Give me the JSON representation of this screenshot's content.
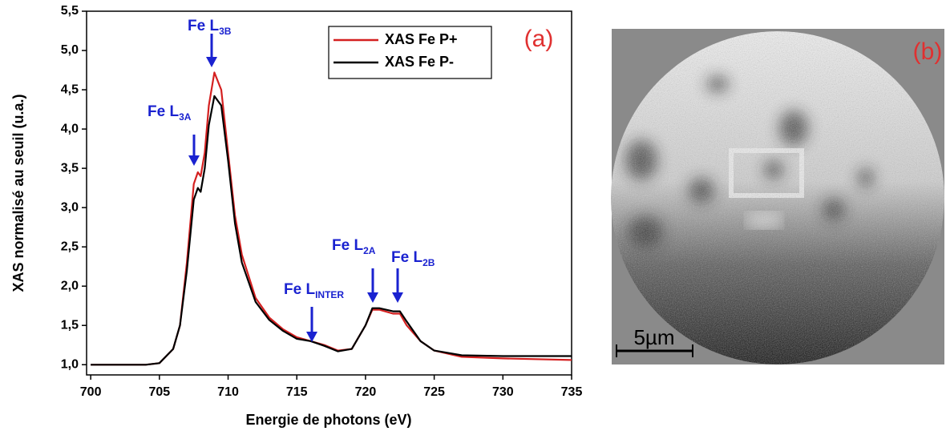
{
  "chart_data": {
    "type": "line",
    "x_label": "Energie de photons (eV)",
    "y_label": "XAS normalisé au seuil (u.a.)",
    "panel_label": "(a)",
    "x": [
      700,
      702,
      704,
      705,
      706,
      706.5,
      707,
      707.5,
      707.8,
      708,
      708.3,
      708.6,
      709,
      709.5,
      710,
      710.5,
      711,
      712,
      713,
      714,
      715,
      716,
      717,
      718,
      719,
      720,
      720.5,
      721,
      722,
      722.5,
      723,
      724,
      725,
      727,
      730,
      735
    ],
    "series": [
      {
        "name": "XAS Fe P+",
        "color": "#d42020",
        "values": [
          1.0,
          1.0,
          1.0,
          1.02,
          1.2,
          1.5,
          2.3,
          3.3,
          3.45,
          3.4,
          3.7,
          4.3,
          4.72,
          4.5,
          3.7,
          2.9,
          2.4,
          1.85,
          1.6,
          1.45,
          1.35,
          1.3,
          1.25,
          1.18,
          1.2,
          1.5,
          1.7,
          1.7,
          1.65,
          1.65,
          1.5,
          1.3,
          1.18,
          1.1,
          1.08,
          1.06
        ]
      },
      {
        "name": "XAS Fe P-",
        "color": "#000000",
        "values": [
          1.0,
          1.0,
          1.0,
          1.02,
          1.2,
          1.5,
          2.2,
          3.1,
          3.25,
          3.2,
          3.5,
          4.05,
          4.42,
          4.3,
          3.6,
          2.8,
          2.3,
          1.8,
          1.57,
          1.43,
          1.33,
          1.3,
          1.24,
          1.17,
          1.2,
          1.5,
          1.72,
          1.72,
          1.68,
          1.68,
          1.55,
          1.3,
          1.18,
          1.12,
          1.11,
          1.11
        ]
      }
    ],
    "xlim": [
      699.7,
      735
    ],
    "xticks": [
      700,
      705,
      710,
      715,
      720,
      725,
      730,
      735
    ],
    "ylim": [
      0.87,
      5.5
    ],
    "yticks": [
      {
        "value": 1.0,
        "label": "1,0"
      },
      {
        "value": 1.5,
        "label": "1,5"
      },
      {
        "value": 2.0,
        "label": "2,0"
      },
      {
        "value": 2.5,
        "label": "2,5"
      },
      {
        "value": 3.0,
        "label": "3,0"
      },
      {
        "value": 3.5,
        "label": "3,5"
      },
      {
        "value": 4.0,
        "label": "4,0"
      },
      {
        "value": 4.5,
        "label": "4,5"
      },
      {
        "value": 5.0,
        "label": "5,0"
      },
      {
        "value": 5.5,
        "label": "5,5"
      }
    ],
    "legend": "upper right",
    "annotations": [
      {
        "text": "Fe L",
        "sub": "3B"
      },
      {
        "text": "Fe L",
        "sub": "3A"
      },
      {
        "text": "Fe L",
        "sub": "INTER"
      },
      {
        "text": "Fe L",
        "sub": "2A"
      },
      {
        "text": "Fe L",
        "sub": "2B"
      }
    ]
  },
  "image_panel": {
    "label": "(b)",
    "scale_bar": "5µm"
  }
}
